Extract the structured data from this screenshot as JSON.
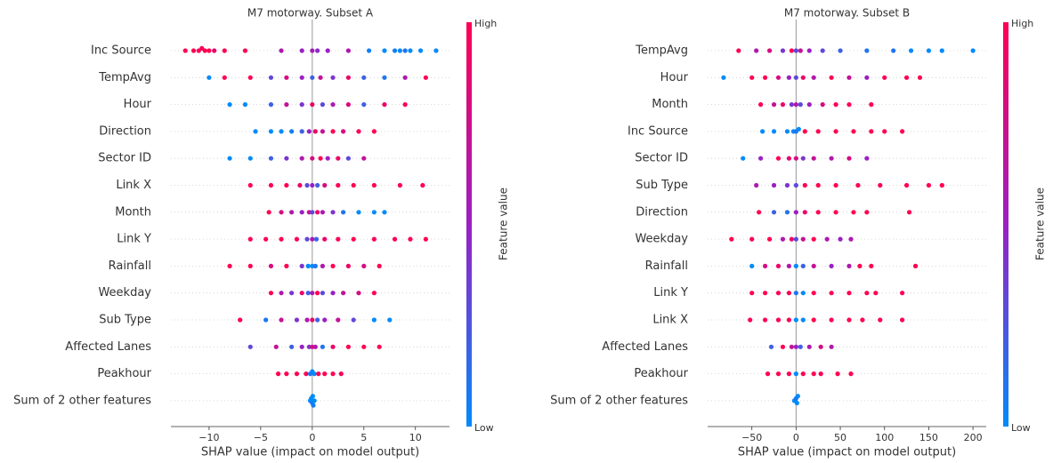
{
  "chart_data": [
    {
      "type": "beeswarm",
      "title": "M7 motorway. Subset A",
      "xlabel": "SHAP value (impact on model output)",
      "xlim": [
        -13.7,
        13.3
      ],
      "xticks": [
        {
          "value": -10,
          "label": "−10"
        },
        {
          "value": -5,
          "label": "−5"
        },
        0,
        5,
        10
      ],
      "colorbar": {
        "high": "High",
        "low": "Low",
        "label": "Feature value"
      },
      "colormap": [
        "#008bfb",
        "#9b1fc4",
        "#ff0052"
      ],
      "categories": [
        "Inc Source",
        "TempAvg",
        "Hour",
        "Direction",
        "Sector ID",
        "Link X",
        "Month",
        "Link Y",
        "Rainfall",
        "Weekday",
        "Sub Type",
        "Affected Lanes",
        "Peakhour",
        "Sum of 2 other features"
      ],
      "shap_values": [
        [
          -12.3,
          -11.5,
          -11,
          -10.7,
          -10.4,
          -10,
          -9.5,
          -8.5,
          -6.5,
          -3,
          -1,
          0,
          0.5,
          1.5,
          3.5,
          5.5,
          7,
          8,
          8.5,
          9,
          9.5,
          10.5,
          12
        ],
        [
          -10,
          -8.5,
          -6,
          -4,
          -2.5,
          -1,
          0,
          0.8,
          2,
          3.5,
          5,
          7,
          9,
          11
        ],
        [
          -8,
          -6.5,
          -4,
          -2.5,
          -1,
          0,
          1,
          2,
          3.5,
          5,
          7,
          9
        ],
        [
          -5.5,
          -4,
          -3,
          -2,
          -1,
          -0.3,
          0.3,
          1,
          2,
          3,
          4.5,
          6
        ],
        [
          -8,
          -6,
          -4,
          -2.5,
          -1,
          0,
          0.8,
          1.5,
          2.5,
          3.5,
          5
        ],
        [
          -6,
          -4,
          -2.5,
          -1.2,
          -0.5,
          0,
          0.5,
          1.2,
          2.5,
          4,
          6,
          8.5,
          10.7
        ],
        [
          -4.2,
          -3,
          -2,
          -1,
          -0.3,
          0,
          0.5,
          1,
          2,
          3,
          4.5,
          6,
          7
        ],
        [
          -6,
          -4.5,
          -3,
          -1.5,
          -0.5,
          0,
          0.4,
          1.2,
          2.5,
          4,
          6,
          8,
          9.5,
          11
        ],
        [
          -8,
          -6,
          -4,
          -2.5,
          -1,
          -0.4,
          0,
          0.3,
          1,
          2,
          3.5,
          5,
          6.5
        ],
        [
          -4,
          -3,
          -2,
          -1,
          -0.4,
          0,
          0.5,
          1,
          2,
          3,
          4.5,
          6
        ],
        [
          -7,
          -4.5,
          -3,
          -1.5,
          -0.5,
          0,
          0.5,
          1.2,
          2.5,
          4,
          6,
          7.5
        ],
        [
          -6,
          -3.5,
          -2,
          -1,
          -0.3,
          0,
          0.3,
          1,
          2,
          3.5,
          5,
          6.5
        ],
        [
          -3.3,
          -2.5,
          -1.5,
          -0.6,
          -0.2,
          0,
          0.2,
          0.6,
          1.2,
          2,
          2.8
        ],
        [
          -0.2,
          -0.1,
          0,
          0.05,
          0.1,
          0.2
        ]
      ],
      "feature_values": [
        [
          1,
          1,
          1,
          0.95,
          1,
          1,
          0.9,
          1,
          1,
          0.6,
          0.5,
          0.55,
          0.45,
          0.5,
          0.6,
          0.05,
          0,
          0.05,
          0,
          0.1,
          0,
          0,
          0
        ],
        [
          0,
          1,
          1,
          0.3,
          0.8,
          0.5,
          0.2,
          0.7,
          0.4,
          0.9,
          0.2,
          0.1,
          0.6,
          1
        ],
        [
          0,
          0,
          0.2,
          0.7,
          0.4,
          0.9,
          0.3,
          0.6,
          0.8,
          0.2,
          0.9,
          1
        ],
        [
          0,
          0,
          0,
          0.05,
          0.2,
          0.5,
          0.9,
          0.7,
          1,
          0.8,
          1,
          1
        ],
        [
          0,
          0,
          0.2,
          0.4,
          0.6,
          0.8,
          1,
          0.5,
          0.9,
          0.3,
          0.7
        ],
        [
          1,
          1,
          1,
          0.9,
          0.3,
          0.5,
          0.2,
          0.8,
          1,
          1,
          1,
          1,
          1
        ],
        [
          1,
          0.8,
          0.6,
          0.5,
          0.7,
          0.3,
          0.9,
          0.6,
          0.4,
          0.1,
          0,
          0,
          0
        ],
        [
          1,
          1,
          1,
          1,
          0.3,
          0.6,
          0.2,
          0.9,
          1,
          1,
          1,
          1,
          1,
          1
        ],
        [
          1,
          1,
          0.8,
          1,
          0.4,
          0,
          0,
          0.1,
          0.6,
          1,
          0.9,
          0.8,
          1
        ],
        [
          1,
          0.6,
          0.4,
          0.9,
          0.2,
          0.6,
          1,
          0.3,
          0.5,
          0.7,
          0.8,
          1
        ],
        [
          1,
          0.1,
          0.7,
          0.4,
          0.6,
          0.9,
          0.2,
          0.5,
          0.7,
          0.3,
          0,
          0
        ],
        [
          0.3,
          0.7,
          0.2,
          0.5,
          0.4,
          0.8,
          0.6,
          0.1,
          0.9,
          1,
          1,
          1
        ],
        [
          1,
          1,
          1,
          1,
          0.1,
          0,
          0,
          1,
          1,
          1,
          1
        ],
        [
          0,
          0,
          0.1,
          0,
          0.05,
          0
        ]
      ]
    },
    {
      "type": "beeswarm",
      "title": "M7 motorway. Subset B",
      "xlabel": "SHAP value (impact on model output)",
      "xlim": [
        -100,
        215
      ],
      "xticks": [
        {
          "value": -50,
          "label": "−50"
        },
        0,
        50,
        100,
        150,
        200
      ],
      "colorbar": {
        "high": "High",
        "low": "Low",
        "label": "Feature value"
      },
      "colormap": [
        "#008bfb",
        "#9b1fc4",
        "#ff0052"
      ],
      "categories": [
        "TempAvg",
        "Hour",
        "Month",
        "Inc Source",
        "Sector ID",
        "Sub Type",
        "Direction",
        "Weekday",
        "Rainfall",
        "Link Y",
        "Link X",
        "Affected Lanes",
        "Peakhour",
        "Sum of 2 other features"
      ],
      "shap_values": [
        [
          -65,
          -45,
          -30,
          -15,
          -5,
          0,
          5,
          15,
          30,
          50,
          80,
          110,
          130,
          150,
          165,
          200
        ],
        [
          -82,
          -50,
          -35,
          -20,
          -8,
          0,
          8,
          20,
          40,
          60,
          80,
          100,
          125,
          140
        ],
        [
          -40,
          -25,
          -15,
          -5,
          0,
          5,
          15,
          30,
          45,
          60,
          85
        ],
        [
          -38,
          -25,
          -10,
          -3,
          0,
          3,
          10,
          25,
          45,
          65,
          85,
          100,
          120
        ],
        [
          -60,
          -40,
          -20,
          -8,
          0,
          8,
          20,
          40,
          60,
          80
        ],
        [
          -45,
          -25,
          -10,
          0,
          10,
          25,
          45,
          70,
          95,
          125,
          150,
          165
        ],
        [
          -42,
          -25,
          -10,
          0,
          10,
          25,
          45,
          65,
          80,
          128
        ],
        [
          -73,
          -50,
          -30,
          -15,
          -5,
          0,
          8,
          20,
          35,
          50,
          62
        ],
        [
          -50,
          -35,
          -20,
          -8,
          0,
          8,
          20,
          40,
          60,
          72,
          85,
          135
        ],
        [
          -50,
          -35,
          -20,
          -8,
          0,
          8,
          20,
          40,
          60,
          80,
          90,
          120
        ],
        [
          -52,
          -35,
          -20,
          -8,
          0,
          8,
          20,
          40,
          60,
          75,
          95,
          120
        ],
        [
          -28,
          -15,
          -5,
          0,
          5,
          15,
          28,
          40
        ],
        [
          -32,
          -20,
          -8,
          0,
          8,
          20,
          28,
          47,
          62
        ],
        [
          -2,
          -1,
          0,
          1,
          2
        ]
      ],
      "feature_values": [
        [
          1,
          0.6,
          0.8,
          0.4,
          1,
          0.3,
          0.7,
          0.5,
          0.3,
          0.2,
          0.1,
          0.1,
          0,
          0,
          0,
          0
        ],
        [
          0,
          1,
          1,
          0.8,
          0.5,
          0.3,
          0.9,
          0.6,
          1,
          0.7,
          0.5,
          1,
          1,
          1
        ],
        [
          1,
          0.7,
          0.9,
          0.4,
          0.6,
          0.3,
          0.5,
          0.8,
          1,
          1,
          1
        ],
        [
          0,
          0,
          0,
          0,
          0.1,
          0,
          1,
          1,
          1,
          1,
          1,
          1,
          1
        ],
        [
          0,
          0.5,
          1,
          0.9,
          0.8,
          0.4,
          0.7,
          0.6,
          0.8,
          0.5
        ],
        [
          0.6,
          0.5,
          0.4,
          0.3,
          1,
          1,
          1,
          1,
          1,
          1,
          1,
          1
        ],
        [
          1,
          0.2,
          0.1,
          0.5,
          0.9,
          1,
          1,
          1,
          1,
          1
        ],
        [
          1,
          1,
          1,
          0.6,
          0.9,
          0.3,
          0.7,
          1,
          0.6,
          0.5,
          0.6
        ],
        [
          0,
          0.8,
          0.9,
          0.6,
          0,
          0.2,
          0.7,
          0.5,
          0.6,
          1,
          1,
          1
        ],
        [
          1,
          1,
          1,
          1,
          0.1,
          0,
          1,
          1,
          1,
          1,
          1,
          1
        ],
        [
          1,
          1,
          1,
          1,
          0,
          0,
          1,
          1,
          1,
          1,
          1,
          1
        ],
        [
          0.2,
          1,
          0.7,
          0.5,
          0.2,
          0.6,
          0.8,
          0.6
        ],
        [
          1,
          1,
          1,
          0,
          1,
          1,
          1,
          1,
          1
        ],
        [
          0,
          0,
          0.1,
          0,
          0
        ]
      ]
    }
  ]
}
